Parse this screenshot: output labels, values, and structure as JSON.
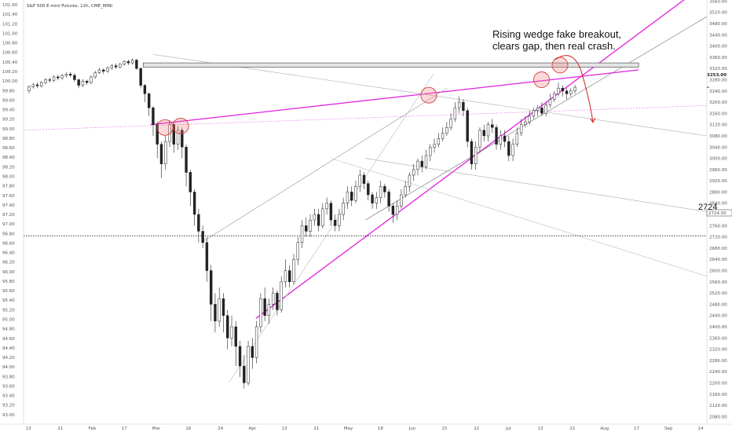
{
  "chart_data": {
    "type": "candlestick",
    "title": "S&P 500 E-mini Futures, 12h, CME_MINI",
    "left_axis": {
      "range": [
        92.8,
        101.7
      ],
      "ticks": [
        "101.60",
        "101.40",
        "101.20",
        "101.00",
        "100.80",
        "100.60",
        "100.40",
        "100.20",
        "100.00",
        "99.80",
        "99.60",
        "99.40",
        "99.20",
        "99.00",
        "98.80",
        "98.60",
        "98.40",
        "98.20",
        "98.00",
        "97.80",
        "97.60",
        "97.40",
        "97.20",
        "97.00",
        "96.80",
        "96.60",
        "96.40",
        "96.20",
        "96.00",
        "95.80",
        "95.60",
        "95.40",
        "95.20",
        "95.00",
        "94.80",
        "94.60",
        "94.40",
        "94.20",
        "94.00",
        "93.80",
        "93.60",
        "93.40",
        "93.20",
        "93.00"
      ]
    },
    "right_axis": {
      "range": [
        2053,
        3564
      ],
      "ticks": [
        "3560.00",
        "3520.00",
        "3480.00",
        "3440.00",
        "3400.00",
        "3360.00",
        "3320.00",
        "3280.00",
        "3240.00",
        "3200.00",
        "3160.00",
        "3120.00",
        "3080.00",
        "3040.00",
        "3000.00",
        "2960.00",
        "2920.00",
        "2880.00",
        "2840.00",
        "2800.00",
        "2760.00",
        "2720.00",
        "2680.00",
        "2640.00",
        "2600.00",
        "2560.00",
        "2520.00",
        "2480.00",
        "2440.00",
        "2400.00",
        "2360.00",
        "2320.00",
        "2280.00",
        "2240.00",
        "2200.00",
        "2160.00",
        "2120.00",
        "2080.00"
      ],
      "last_price_label": "3253.00",
      "last_price_value": 3253,
      "level_label": "2724.00",
      "level_value": 2724
    },
    "x_axis": {
      "tick_labels": [
        "13",
        "21",
        "Feb",
        "17",
        "Mar",
        "16",
        "24",
        "Apr",
        "13",
        "21",
        "May",
        "18",
        "Jun",
        "15",
        "22",
        "Jul",
        "13",
        "21",
        "Aug",
        "17",
        "Sep",
        "14"
      ]
    },
    "candles": [
      [
        3240,
        3255,
        3232,
        3260
      ],
      [
        3255,
        3262,
        3248,
        3268
      ],
      [
        3262,
        3258,
        3250,
        3270
      ],
      [
        3258,
        3270,
        3252,
        3276
      ],
      [
        3270,
        3280,
        3264,
        3286
      ],
      [
        3280,
        3278,
        3270,
        3288
      ],
      [
        3278,
        3290,
        3272,
        3296
      ],
      [
        3290,
        3286,
        3278,
        3298
      ],
      [
        3286,
        3295,
        3280,
        3300
      ],
      [
        3295,
        3300,
        3288,
        3306
      ],
      [
        3300,
        3296,
        3290,
        3308
      ],
      [
        3296,
        3280,
        3272,
        3302
      ],
      [
        3280,
        3260,
        3250,
        3284
      ],
      [
        3260,
        3275,
        3254,
        3282
      ],
      [
        3275,
        3270,
        3262,
        3280
      ],
      [
        3270,
        3290,
        3264,
        3296
      ],
      [
        3290,
        3305,
        3284,
        3312
      ],
      [
        3305,
        3315,
        3300,
        3322
      ],
      [
        3315,
        3310,
        3300,
        3320
      ],
      [
        3310,
        3322,
        3304,
        3328
      ],
      [
        3322,
        3330,
        3316,
        3336
      ],
      [
        3330,
        3325,
        3318,
        3338
      ],
      [
        3325,
        3335,
        3320,
        3340
      ],
      [
        3335,
        3345,
        3330,
        3350
      ],
      [
        3345,
        3340,
        3332,
        3352
      ],
      [
        3340,
        3350,
        3334,
        3356
      ],
      [
        3350,
        3320,
        3315,
        3355
      ],
      [
        3320,
        3260,
        3250,
        3325
      ],
      [
        3260,
        3230,
        3200,
        3265
      ],
      [
        3230,
        3180,
        3150,
        3235
      ],
      [
        3180,
        3120,
        3080,
        3185
      ],
      [
        3120,
        3050,
        3000,
        3130
      ],
      [
        3050,
        2980,
        2930,
        3060
      ],
      [
        2980,
        3060,
        2960,
        3080
      ],
      [
        3060,
        3120,
        3040,
        3135
      ],
      [
        3120,
        3050,
        3020,
        3130
      ],
      [
        3050,
        3100,
        3030,
        3115
      ],
      [
        3100,
        3040,
        3000,
        3110
      ],
      [
        3040,
        2950,
        2900,
        3050
      ],
      [
        2950,
        2880,
        2830,
        2960
      ],
      [
        2880,
        2800,
        2760,
        2890
      ],
      [
        2800,
        2740,
        2700,
        2820
      ],
      [
        2740,
        2700,
        2680,
        2760
      ],
      [
        2700,
        2600,
        2560,
        2720
      ],
      [
        2600,
        2480,
        2420,
        2620
      ],
      [
        2480,
        2420,
        2380,
        2520
      ],
      [
        2420,
        2500,
        2400,
        2540
      ],
      [
        2500,
        2440,
        2380,
        2520
      ],
      [
        2440,
        2360,
        2320,
        2460
      ],
      [
        2360,
        2400,
        2330,
        2440
      ],
      [
        2400,
        2330,
        2260,
        2420
      ],
      [
        2330,
        2260,
        2220,
        2350
      ],
      [
        2260,
        2200,
        2180,
        2300
      ],
      [
        2200,
        2330,
        2190,
        2350
      ],
      [
        2330,
        2290,
        2250,
        2360
      ],
      [
        2290,
        2400,
        2270,
        2420
      ],
      [
        2400,
        2500,
        2380,
        2520
      ],
      [
        2500,
        2440,
        2420,
        2540
      ],
      [
        2440,
        2480,
        2410,
        2500
      ],
      [
        2480,
        2520,
        2460,
        2540
      ],
      [
        2520,
        2460,
        2440,
        2530
      ],
      [
        2460,
        2560,
        2450,
        2580
      ],
      [
        2560,
        2600,
        2540,
        2640
      ],
      [
        2600,
        2560,
        2540,
        2620
      ],
      [
        2560,
        2640,
        2550,
        2660
      ],
      [
        2640,
        2700,
        2620,
        2720
      ],
      [
        2700,
        2760,
        2680,
        2780
      ],
      [
        2760,
        2740,
        2720,
        2790
      ],
      [
        2740,
        2780,
        2720,
        2800
      ],
      [
        2780,
        2800,
        2760,
        2820
      ],
      [
        2800,
        2760,
        2740,
        2820
      ],
      [
        2760,
        2820,
        2750,
        2840
      ],
      [
        2820,
        2840,
        2800,
        2860
      ],
      [
        2840,
        2780,
        2760,
        2850
      ],
      [
        2780,
        2760,
        2740,
        2800
      ],
      [
        2760,
        2800,
        2740,
        2820
      ],
      [
        2800,
        2840,
        2780,
        2860
      ],
      [
        2840,
        2880,
        2820,
        2900
      ],
      [
        2880,
        2850,
        2830,
        2900
      ],
      [
        2850,
        2900,
        2840,
        2920
      ],
      [
        2900,
        2940,
        2880,
        2960
      ],
      [
        2940,
        2910,
        2890,
        2950
      ],
      [
        2910,
        2870,
        2850,
        2920
      ],
      [
        2870,
        2840,
        2820,
        2880
      ],
      [
        2840,
        2860,
        2820,
        2880
      ],
      [
        2860,
        2900,
        2840,
        2920
      ],
      [
        2900,
        2880,
        2860,
        2910
      ],
      [
        2880,
        2830,
        2810,
        2890
      ],
      [
        2830,
        2800,
        2770,
        2840
      ],
      [
        2800,
        2830,
        2780,
        2850
      ],
      [
        2830,
        2870,
        2820,
        2890
      ],
      [
        2870,
        2900,
        2860,
        2920
      ],
      [
        2900,
        2940,
        2880,
        2950
      ],
      [
        2940,
        2960,
        2920,
        2980
      ],
      [
        2960,
        2990,
        2940,
        3000
      ],
      [
        2990,
        2970,
        2950,
        3010
      ],
      [
        2970,
        3010,
        2960,
        3030
      ],
      [
        3010,
        3040,
        2990,
        3050
      ],
      [
        3040,
        3050,
        3020,
        3070
      ],
      [
        3050,
        3070,
        3040,
        3090
      ],
      [
        3070,
        3090,
        3060,
        3110
      ],
      [
        3090,
        3110,
        3080,
        3130
      ],
      [
        3110,
        3140,
        3100,
        3160
      ],
      [
        3140,
        3180,
        3130,
        3200
      ],
      [
        3180,
        3200,
        3160,
        3220
      ],
      [
        3200,
        3170,
        3150,
        3210
      ],
      [
        3170,
        3060,
        3040,
        3180
      ],
      [
        3060,
        2980,
        2960,
        3070
      ],
      [
        2980,
        3040,
        2960,
        3060
      ],
      [
        3040,
        3100,
        3020,
        3110
      ],
      [
        3100,
        3080,
        3060,
        3120
      ],
      [
        3080,
        3120,
        3060,
        3130
      ],
      [
        3120,
        3110,
        3090,
        3140
      ],
      [
        3110,
        3050,
        3030,
        3120
      ],
      [
        3050,
        3080,
        3030,
        3100
      ],
      [
        3080,
        3060,
        3040,
        3100
      ],
      [
        3060,
        3010,
        2990,
        3080
      ],
      [
        3010,
        3050,
        2990,
        3070
      ],
      [
        3050,
        3090,
        3040,
        3110
      ],
      [
        3090,
        3120,
        3080,
        3140
      ],
      [
        3120,
        3130,
        3110,
        3150
      ],
      [
        3130,
        3150,
        3120,
        3170
      ],
      [
        3150,
        3170,
        3140,
        3180
      ],
      [
        3170,
        3180,
        3150,
        3190
      ],
      [
        3180,
        3160,
        3150,
        3200
      ],
      [
        3160,
        3190,
        3150,
        3200
      ],
      [
        3190,
        3210,
        3180,
        3230
      ],
      [
        3210,
        3230,
        3200,
        3240
      ],
      [
        3230,
        3250,
        3220,
        3270
      ],
      [
        3250,
        3240,
        3220,
        3260
      ],
      [
        3240,
        3230,
        3210,
        3250
      ],
      [
        3230,
        3240,
        3220,
        3250
      ],
      [
        3240,
        3253,
        3230,
        3262
      ]
    ],
    "lines": [
      {
        "name": "wedge-upper-trendline",
        "color": "#e020e0",
        "points": [
          [
            0.186,
            3120
          ],
          [
            0.9,
            3315
          ]
        ]
      },
      {
        "name": "wedge-lower-trendline",
        "color": "#e020e0",
        "points": [
          [
            0.34,
            2430
          ],
          [
            0.975,
            3580
          ]
        ]
      },
      {
        "name": "resistance-dotted",
        "color": "#e040e0",
        "points": [
          [
            0.0,
            3100
          ],
          [
            1.0,
            3188
          ]
        ]
      },
      {
        "name": "gray-trendline-1",
        "color": "#666666",
        "points": [
          [
            0.5,
            2780
          ],
          [
            1.0,
            3505
          ]
        ]
      },
      {
        "name": "gray-trendline-2",
        "color": "#999999",
        "points": [
          [
            0.26,
            2700
          ],
          [
            0.62,
            3250
          ]
        ]
      },
      {
        "name": "gray-trendline-3",
        "color": "#aaaaaa",
        "points": [
          [
            0.19,
            3370
          ],
          [
            1.0,
            3080
          ]
        ]
      },
      {
        "name": "gray-trendline-4",
        "color": "#aaaaaa",
        "points": [
          [
            0.5,
            3000
          ],
          [
            1.0,
            2810
          ]
        ]
      },
      {
        "name": "gray-trendline-5",
        "color": "#bbbbbb",
        "points": [
          [
            0.3,
            2200
          ],
          [
            0.6,
            3300
          ]
        ]
      },
      {
        "name": "gray-trendline-6",
        "color": "#bbbbbb",
        "points": [
          [
            0.45,
            3000
          ],
          [
            1.0,
            2580
          ]
        ]
      }
    ],
    "gap_box": {
      "top": 3340,
      "bottom": 3325,
      "from": 0.175,
      "to": 0.9
    },
    "circles": [
      {
        "x": 0.207,
        "y": 3110
      },
      {
        "x": 0.23,
        "y": 3115
      },
      {
        "x": 0.593,
        "y": 3225
      },
      {
        "x": 0.758,
        "y": 3280
      },
      {
        "x": 0.785,
        "y": 3332
      }
    ],
    "annotation": {
      "lines": [
        "Rising wedge fake breakout,",
        "clears gap, then real crash."
      ]
    },
    "level_line": {
      "value": 2724,
      "label": "2724"
    }
  }
}
